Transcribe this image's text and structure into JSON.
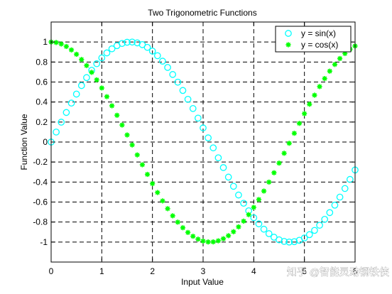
{
  "chart_data": {
    "type": "scatter",
    "title": "Two Trigonometric Functions",
    "xlabel": "Input Value",
    "ylabel": "Function Value",
    "xlim": [
      0,
      6
    ],
    "ylim": [
      -1.2,
      1.2
    ],
    "xticks": [
      0,
      1,
      2,
      3,
      4,
      5,
      6
    ],
    "yticks": [
      -1,
      -0.8,
      -0.6,
      -0.4,
      -0.2,
      0,
      0.2,
      0.4,
      0.6,
      0.8,
      1
    ],
    "xtick_labels": [
      "0",
      "1",
      "2",
      "3",
      "4",
      "5",
      "6"
    ],
    "ytick_labels": [
      "-1",
      "-0.8",
      "-0.6",
      "-0.4",
      "-0.2",
      "0",
      "0.2",
      "0.4",
      "0.6",
      "0.8",
      "1"
    ],
    "grid": true,
    "grid_style": "dashed",
    "legend_position": "top-right",
    "x_step": 0.1,
    "series": [
      {
        "name": "y = sin(x)",
        "function": "sin",
        "marker": "circle",
        "color": "#00ffff"
      },
      {
        "name": "y = cos(x)",
        "function": "cos",
        "marker": "asterisk",
        "color": "#00ff00"
      }
    ]
  },
  "watermark": "知乎 @智能灵动钢铁侠"
}
